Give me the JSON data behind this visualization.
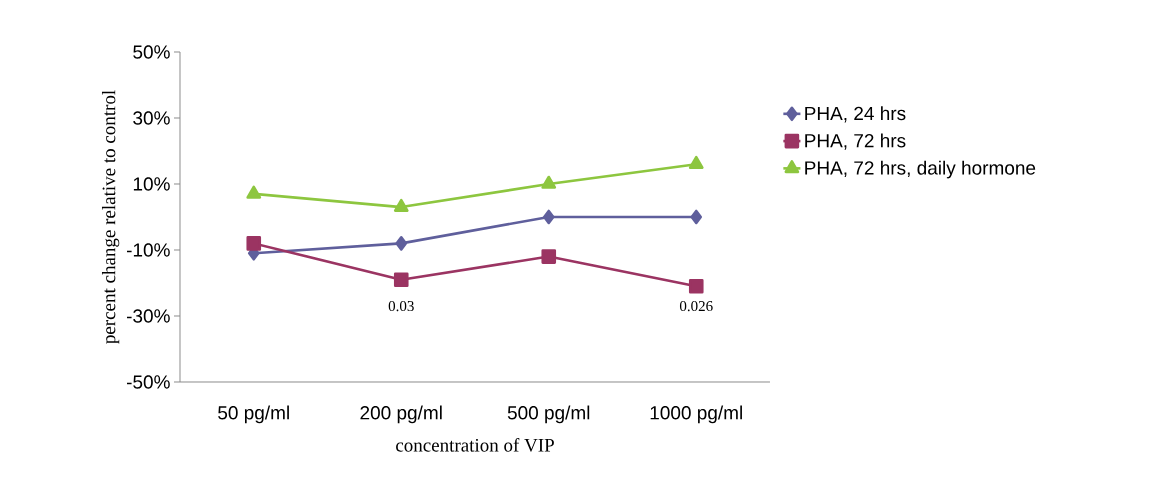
{
  "chart_data": {
    "type": "line",
    "xlabel": "concentration of VIP",
    "ylabel": "percent change relative to control",
    "categories": [
      "50 pg/ml",
      "200 pg/ml",
      "500 pg/ml",
      "1000 pg/ml"
    ],
    "series": [
      {
        "name": "PHA, 24 hrs",
        "color": "#5f5f9c",
        "marker": "diamond",
        "values": [
          -11,
          -8,
          0,
          0
        ]
      },
      {
        "name": "PHA, 72 hrs",
        "color": "#9b3462",
        "marker": "square",
        "values": [
          -8,
          -19,
          -12,
          -21
        ]
      },
      {
        "name": "PHA, 72 hrs, daily hormone",
        "color": "#8dc63f",
        "marker": "triangle",
        "values": [
          7,
          3,
          10,
          16
        ]
      }
    ],
    "ylim": [
      -50,
      50
    ],
    "yticks": [
      {
        "value": -50,
        "label": "-50%"
      },
      {
        "value": -30,
        "label": "-30%"
      },
      {
        "value": -10,
        "label": "-10%"
      },
      {
        "value": 10,
        "label": "10%"
      },
      {
        "value": 30,
        "label": "30%"
      },
      {
        "value": 50,
        "label": "50%"
      }
    ],
    "annotations": [
      "0.03",
      "0.026"
    ],
    "legend": "right",
    "grid": false,
    "line_style": "solid"
  }
}
